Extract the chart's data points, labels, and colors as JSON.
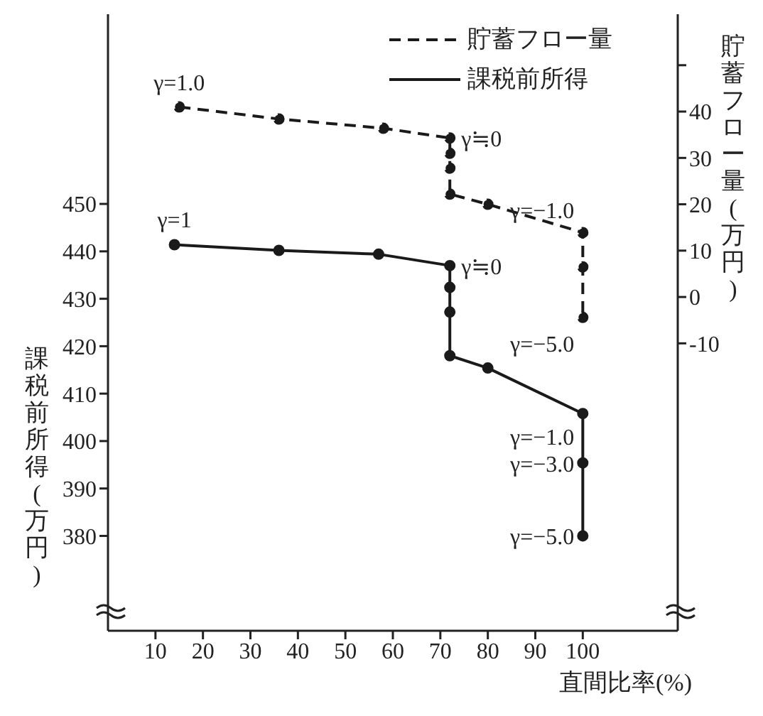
{
  "chart_data": {
    "type": "line",
    "xlabel": "直間比率(%)",
    "ylabel": "課税前所得(万円)",
    "y2label": "貯蓄フロー量(万円)",
    "xlim": [
      0,
      120
    ],
    "xticks": [
      10,
      20,
      30,
      40,
      50,
      60,
      70,
      80,
      90,
      100
    ],
    "ylim": [
      360,
      490
    ],
    "yticks": [
      380,
      390,
      400,
      410,
      420,
      430,
      440,
      450
    ],
    "y2lim": [
      -72,
      61
    ],
    "y2ticks": [
      -10,
      0,
      10,
      20,
      30,
      40,
      {
        "value": 50,
        "label": null
      }
    ],
    "legend": "top",
    "marker": "circle",
    "grid": false,
    "series": [
      {
        "name": "貯蓄フロー量",
        "color": "#1a1a1a",
        "axis": "y2",
        "line_style": "dashed",
        "x": [
          15,
          36,
          58,
          72,
          72,
          72,
          72,
          80,
          100,
          100,
          100
        ],
        "values": [
          41.0,
          38.4,
          36.4,
          34.3,
          31.0,
          27.8,
          22.2,
          20.0,
          13.9,
          6.5,
          -4.4
        ]
      },
      {
        "name": "課税前所得",
        "color": "#1a1a1a",
        "line_style": "solid",
        "x": [
          14,
          36,
          57,
          72,
          72,
          72,
          72,
          80,
          100,
          100,
          100
        ],
        "values": [
          441.4,
          440.2,
          439.4,
          437.0,
          432.4,
          427.2,
          418.0,
          415.4,
          405.8,
          395.4,
          380.0
        ]
      }
    ],
    "annotations": [
      "γ=1.0",
      "γ≒0",
      "γ=−1.0",
      "γ=−5.0",
      {
        "text": "γ=1",
        "x": 14,
        "y": 441.4
      },
      {
        "text": "γ≒0",
        "x": 72,
        "y": 437.0
      },
      {
        "text": "γ=−1.0",
        "x": 100,
        "y": 405.8
      },
      {
        "text": "γ=−3.0",
        "x": 100,
        "y": 395.4
      },
      {
        "text": "γ=−5.0",
        "x": 100,
        "y": 380.0
      }
    ]
  }
}
